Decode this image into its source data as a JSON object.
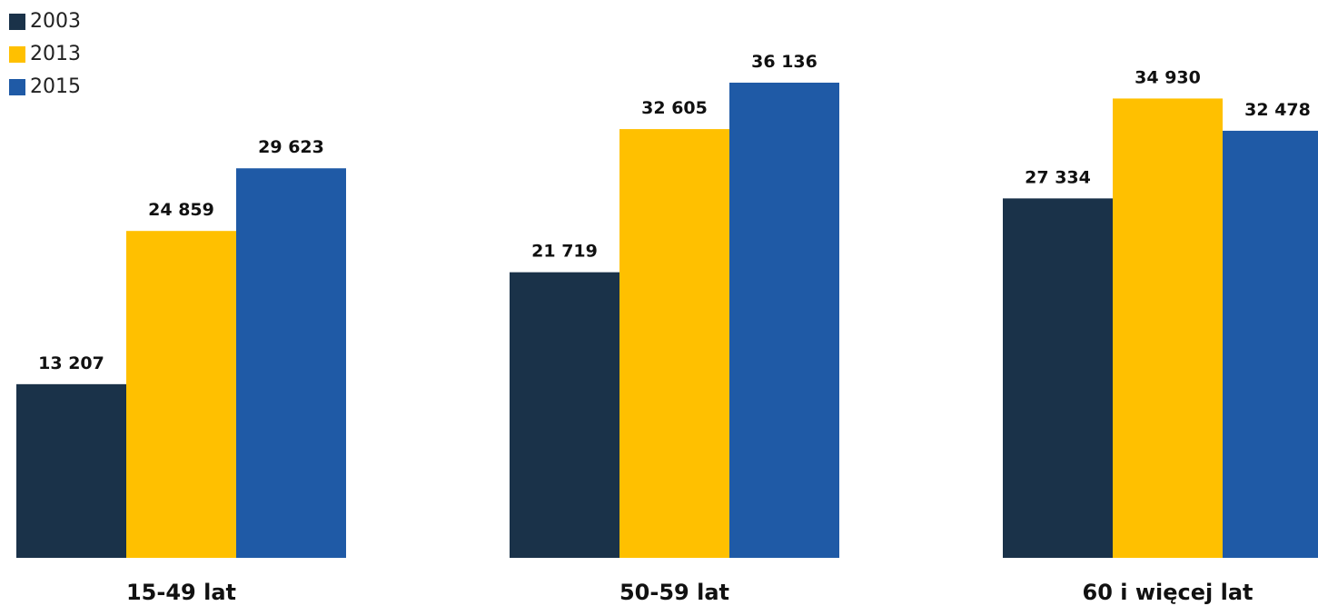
{
  "chart_data": {
    "type": "bar",
    "categories": [
      "15-49 lat",
      "50-59 lat",
      "60 i więcej lat"
    ],
    "series": [
      {
        "name": "2003",
        "color": "#1a3249",
        "values": [
          13207,
          21719,
          27334
        ],
        "labels": [
          "13 207",
          "21 719",
          "27 334"
        ]
      },
      {
        "name": "2013",
        "color": "#ffc000",
        "values": [
          24859,
          32605,
          34930
        ],
        "labels": [
          "24 859",
          "32 605",
          "34 930"
        ]
      },
      {
        "name": "2015",
        "color": "#1f5aa6",
        "values": [
          29623,
          36136,
          32478
        ],
        "labels": [
          "29 623",
          "36 136",
          "32 478"
        ]
      }
    ],
    "title": "",
    "xlabel": "",
    "ylabel": "",
    "ylim": [
      0,
      38000
    ],
    "grid": false,
    "legend_position": "top-left"
  }
}
